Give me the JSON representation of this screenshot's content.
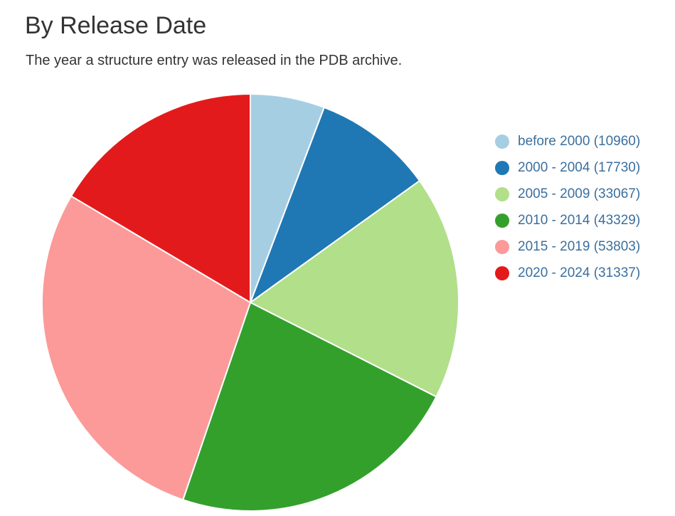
{
  "header": {
    "title": "By Release Date",
    "subtitle": "The year a structure entry was released in the PDB archive."
  },
  "chart_data": {
    "type": "pie",
    "title": "By Release Date",
    "subtitle": "The year a structure entry was released in the PDB archive.",
    "legend_position": "right",
    "slices": [
      {
        "label": "before 2000 (10960)",
        "name": "before 2000",
        "value": 10960,
        "color": "#a6cee3"
      },
      {
        "label": "2000 - 2004 (17730)",
        "name": "2000 - 2004",
        "value": 17730,
        "color": "#1f78b4"
      },
      {
        "label": "2005 - 2009 (33067)",
        "name": "2005 - 2009",
        "value": 33067,
        "color": "#b2df8a"
      },
      {
        "label": "2010 - 2014 (43329)",
        "name": "2010 - 2014",
        "value": 43329,
        "color": "#33a02c"
      },
      {
        "label": "2015 - 2019 (53803)",
        "name": "2015 - 2019",
        "value": 53803,
        "color": "#fb9a99"
      },
      {
        "label": "2020 - 2024 (31337)",
        "name": "2020 - 2024",
        "value": 31337,
        "color": "#e31a1c"
      }
    ]
  }
}
